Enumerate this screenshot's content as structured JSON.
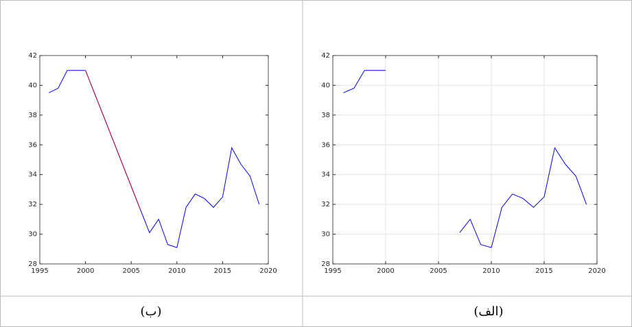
{
  "chart_data": [
    {
      "type": "line",
      "caption": "(ب)",
      "grid": false,
      "x": [
        1996,
        1997,
        1998,
        1999,
        2000,
        2001,
        2002,
        2003,
        2004,
        2005,
        2006,
        2007,
        2008,
        2009,
        2010,
        2011,
        2012,
        2013,
        2014,
        2015,
        2016,
        2017,
        2018,
        2019
      ],
      "series": [
        {
          "color": "#0000ff",
          "values": [
            39.5,
            39.8,
            41,
            41,
            41,
            39.44,
            37.89,
            36.33,
            34.77,
            33.21,
            31.66,
            30.1,
            31,
            29.3,
            29.1,
            31.8,
            32.7,
            32.4,
            31.8,
            32.5,
            35.8,
            34.7,
            33.9,
            32
          ]
        },
        {
          "color": "#c00040",
          "values": [
            null,
            null,
            null,
            null,
            41,
            39.44,
            37.89,
            36.33,
            34.77,
            33.21,
            31.66,
            null,
            null,
            null,
            null,
            null,
            null,
            null,
            null,
            null,
            null,
            null,
            null,
            null
          ]
        }
      ],
      "xlim": [
        1995,
        2020
      ],
      "xticks": [
        1995,
        2000,
        2005,
        2010,
        2015,
        2020
      ],
      "ylim": [
        28,
        42
      ],
      "yticks": [
        28,
        30,
        32,
        34,
        36,
        38,
        40,
        42
      ]
    },
    {
      "type": "line",
      "caption": "(الف)",
      "grid": true,
      "x": [
        1996,
        1997,
        1998,
        1999,
        2000,
        2001,
        2002,
        2003,
        2004,
        2005,
        2006,
        2007,
        2008,
        2009,
        2010,
        2011,
        2012,
        2013,
        2014,
        2015,
        2016,
        2017,
        2018,
        2019
      ],
      "series": [
        {
          "color": "#0000ff",
          "values": [
            39.5,
            39.8,
            41,
            41,
            41,
            null,
            null,
            null,
            null,
            null,
            null,
            30.1,
            31,
            29.3,
            29.1,
            31.8,
            32.7,
            32.4,
            31.8,
            32.5,
            35.8,
            34.7,
            33.9,
            32
          ]
        }
      ],
      "xlim": [
        1995,
        2020
      ],
      "xticks": [
        1995,
        2000,
        2005,
        2010,
        2015,
        2020
      ],
      "ylim": [
        28,
        42
      ],
      "yticks": [
        28,
        30,
        32,
        34,
        36,
        38,
        40,
        42
      ]
    }
  ]
}
